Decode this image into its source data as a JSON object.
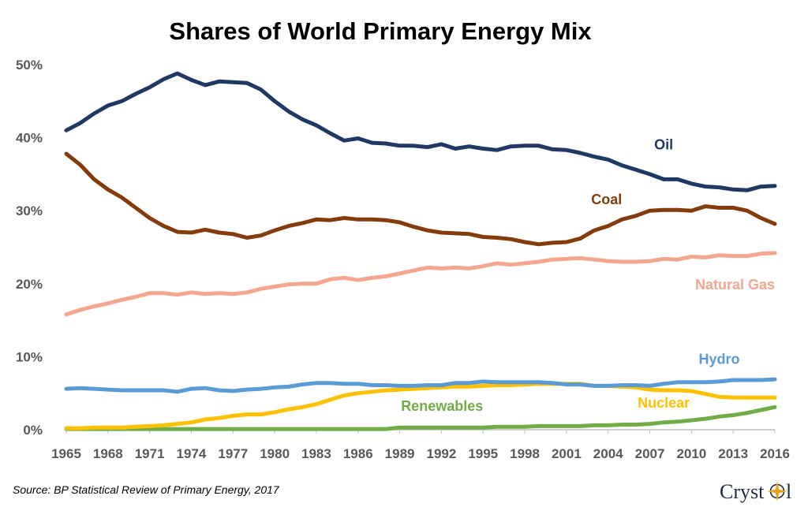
{
  "title": "Shares of World Primary Energy Mix",
  "source": "Source: BP Statistical Review of Primary Energy, 2017",
  "logo": {
    "text_before": "Cryst",
    "text_after": "l",
    "icon": "compass-star-icon"
  },
  "chart_data": {
    "type": "line",
    "title": "Shares of World Primary Energy Mix",
    "xlabel": "",
    "ylabel": "",
    "xlim": [
      1965,
      2016
    ],
    "ylim": [
      0,
      50
    ],
    "x_ticks": [
      "1965",
      "1968",
      "1971",
      "1974",
      "1977",
      "1980",
      "1983",
      "1986",
      "1989",
      "1992",
      "1995",
      "1998",
      "2001",
      "2004",
      "2007",
      "2010",
      "2013",
      "2016"
    ],
    "y_ticks": [
      "0%",
      "10%",
      "20%",
      "30%",
      "40%",
      "50%"
    ],
    "grid": false,
    "legend": "inline labels",
    "x": [
      1965,
      1966,
      1967,
      1968,
      1969,
      1970,
      1971,
      1972,
      1973,
      1974,
      1975,
      1976,
      1977,
      1978,
      1979,
      1980,
      1981,
      1982,
      1983,
      1984,
      1985,
      1986,
      1987,
      1988,
      1989,
      1990,
      1991,
      1992,
      1993,
      1994,
      1995,
      1996,
      1997,
      1998,
      1999,
      2000,
      2001,
      2002,
      2003,
      2004,
      2005,
      2006,
      2007,
      2008,
      2009,
      2010,
      2011,
      2012,
      2013,
      2014,
      2015,
      2016
    ],
    "series": [
      {
        "name": "Oil",
        "color": "#1f3864",
        "values": [
          41.0,
          42.0,
          43.3,
          44.4,
          45.0,
          46.0,
          46.9,
          48.0,
          48.8,
          47.9,
          47.2,
          47.7,
          47.6,
          47.5,
          46.6,
          45.0,
          43.6,
          42.5,
          41.7,
          40.6,
          39.6,
          39.9,
          39.3,
          39.2,
          38.9,
          38.9,
          38.7,
          39.1,
          38.5,
          38.8,
          38.5,
          38.3,
          38.8,
          38.9,
          38.9,
          38.4,
          38.3,
          37.9,
          37.4,
          37.0,
          36.2,
          35.6,
          35.0,
          34.3,
          34.3,
          33.7,
          33.3,
          33.2,
          32.9,
          32.8,
          33.3,
          33.4
        ]
      },
      {
        "name": "Coal",
        "color": "#843c0c",
        "values": [
          37.8,
          36.3,
          34.3,
          32.9,
          31.8,
          30.4,
          29.0,
          27.9,
          27.1,
          27.0,
          27.4,
          27.0,
          26.8,
          26.3,
          26.6,
          27.3,
          27.9,
          28.3,
          28.8,
          28.7,
          29.0,
          28.8,
          28.8,
          28.7,
          28.4,
          27.8,
          27.3,
          27.0,
          26.9,
          26.8,
          26.4,
          26.3,
          26.1,
          25.7,
          25.4,
          25.6,
          25.7,
          26.2,
          27.3,
          27.9,
          28.8,
          29.3,
          30.0,
          30.1,
          30.1,
          30.0,
          30.6,
          30.4,
          30.4,
          30.0,
          29.0,
          28.2
        ]
      },
      {
        "name": "Natural Gas",
        "color": "#f4a78f",
        "values": [
          15.8,
          16.4,
          16.9,
          17.3,
          17.8,
          18.2,
          18.7,
          18.7,
          18.5,
          18.8,
          18.6,
          18.7,
          18.6,
          18.8,
          19.3,
          19.6,
          19.9,
          20.0,
          20.0,
          20.6,
          20.8,
          20.5,
          20.8,
          21.0,
          21.4,
          21.8,
          22.2,
          22.1,
          22.2,
          22.1,
          22.4,
          22.8,
          22.6,
          22.8,
          23.0,
          23.3,
          23.4,
          23.5,
          23.3,
          23.1,
          23.0,
          23.0,
          23.1,
          23.4,
          23.3,
          23.7,
          23.6,
          23.9,
          23.8,
          23.8,
          24.1,
          24.2
        ]
      },
      {
        "name": "Hydro",
        "color": "#5b9bd5",
        "values": [
          5.6,
          5.7,
          5.6,
          5.5,
          5.4,
          5.4,
          5.4,
          5.4,
          5.2,
          5.6,
          5.7,
          5.4,
          5.3,
          5.5,
          5.6,
          5.8,
          5.9,
          6.2,
          6.4,
          6.4,
          6.3,
          6.3,
          6.1,
          6.1,
          6.0,
          6.0,
          6.1,
          6.1,
          6.4,
          6.4,
          6.6,
          6.5,
          6.5,
          6.5,
          6.5,
          6.4,
          6.2,
          6.2,
          6.0,
          6.0,
          6.1,
          6.1,
          6.0,
          6.3,
          6.5,
          6.5,
          6.5,
          6.6,
          6.8,
          6.8,
          6.8,
          6.9
        ]
      },
      {
        "name": "Nuclear",
        "color": "#ffc000",
        "values": [
          0.2,
          0.2,
          0.3,
          0.3,
          0.3,
          0.4,
          0.5,
          0.6,
          0.8,
          1.0,
          1.4,
          1.6,
          1.9,
          2.1,
          2.1,
          2.4,
          2.8,
          3.1,
          3.5,
          4.1,
          4.7,
          5.0,
          5.2,
          5.4,
          5.5,
          5.6,
          5.7,
          5.8,
          5.9,
          5.9,
          6.0,
          6.1,
          6.1,
          6.2,
          6.3,
          6.3,
          6.3,
          6.3,
          6.0,
          6.0,
          5.9,
          5.8,
          5.5,
          5.4,
          5.4,
          5.3,
          4.9,
          4.5,
          4.4,
          4.4,
          4.4,
          4.4
        ]
      },
      {
        "name": "Renewables",
        "color": "#70ad47",
        "values": [
          0.1,
          0.1,
          0.1,
          0.1,
          0.1,
          0.1,
          0.1,
          0.1,
          0.1,
          0.1,
          0.1,
          0.1,
          0.1,
          0.1,
          0.1,
          0.1,
          0.1,
          0.1,
          0.1,
          0.1,
          0.1,
          0.1,
          0.1,
          0.1,
          0.3,
          0.3,
          0.3,
          0.3,
          0.3,
          0.3,
          0.3,
          0.4,
          0.4,
          0.4,
          0.5,
          0.5,
          0.5,
          0.5,
          0.6,
          0.6,
          0.7,
          0.7,
          0.8,
          1.0,
          1.1,
          1.3,
          1.5,
          1.8,
          2.0,
          2.3,
          2.7,
          3.1
        ]
      }
    ]
  }
}
